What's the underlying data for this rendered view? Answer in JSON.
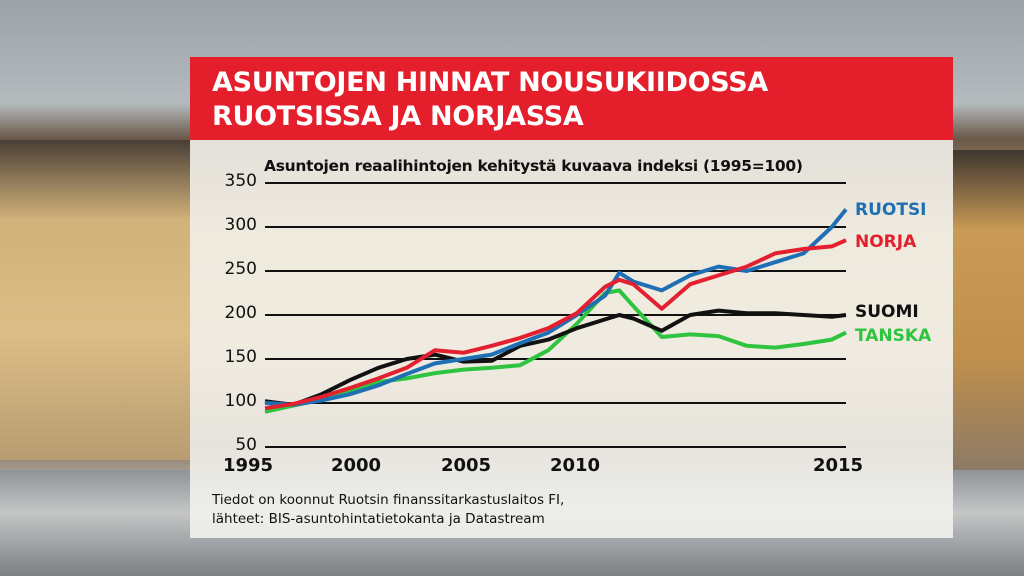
{
  "header": {
    "title_line1": "ASUNTOJEN HINNAT NOUSUKIIDOSSA",
    "title_line2": "RUOTSISSA JA NORJASSA"
  },
  "source": {
    "line1": "Tiedot on koonnut Ruotsin finanssitarkastuslaitos FI,",
    "line2": "lähteet: BIS-asuntohintatietokanta ja Datastream"
  },
  "colors": {
    "header_bg": "#e41e2b",
    "ruotsi": "#1f6fb4",
    "norja": "#e3202f",
    "suomi": "#111111",
    "tanska": "#2ec43f"
  },
  "chart_data": {
    "type": "line",
    "title": "Asuntojen reaalihintojen kehitystä kuvaava indeksi (1995=100)",
    "xlabel": "",
    "ylabel": "",
    "ylim": [
      50,
      350
    ],
    "yticks": [
      350,
      300,
      250,
      200,
      150,
      100,
      50
    ],
    "xticks": [
      "1995",
      "2000",
      "2005",
      "2010",
      "2015"
    ],
    "xlim": [
      1995,
      2015.5
    ],
    "grid": "horizontal",
    "legend_position": "right, at line ends",
    "x": [
      1995,
      1996,
      1997,
      1998,
      1999,
      2000,
      2001,
      2002,
      2003,
      2004,
      2005,
      2006,
      2007,
      2007.5,
      2008,
      2009,
      2010,
      2011,
      2012,
      2013,
      2014,
      2015,
      2015.5
    ],
    "series": [
      {
        "name": "RUOTSI",
        "color": "#1f6fb4",
        "values": [
          100,
          98,
          103,
          110,
          120,
          133,
          145,
          150,
          155,
          168,
          180,
          200,
          222,
          248,
          238,
          228,
          245,
          255,
          250,
          260,
          270,
          300,
          320
        ]
      },
      {
        "name": "NORJA",
        "color": "#e3202f",
        "values": [
          94,
          99,
          107,
          117,
          128,
          140,
          160,
          157,
          165,
          174,
          185,
          202,
          232,
          240,
          235,
          207,
          235,
          245,
          255,
          270,
          275,
          278,
          285
        ]
      },
      {
        "name": "SUOMI",
        "color": "#111111",
        "values": [
          102,
          98,
          110,
          126,
          140,
          150,
          155,
          147,
          148,
          165,
          172,
          185,
          195,
          200,
          196,
          182,
          200,
          205,
          202,
          202,
          200,
          198,
          200
        ]
      },
      {
        "name": "TANSKA",
        "color": "#2ec43f",
        "values": [
          90,
          97,
          104,
          114,
          124,
          128,
          134,
          138,
          140,
          143,
          160,
          190,
          225,
          228,
          210,
          175,
          178,
          176,
          165,
          163,
          167,
          172,
          180
        ]
      }
    ]
  }
}
